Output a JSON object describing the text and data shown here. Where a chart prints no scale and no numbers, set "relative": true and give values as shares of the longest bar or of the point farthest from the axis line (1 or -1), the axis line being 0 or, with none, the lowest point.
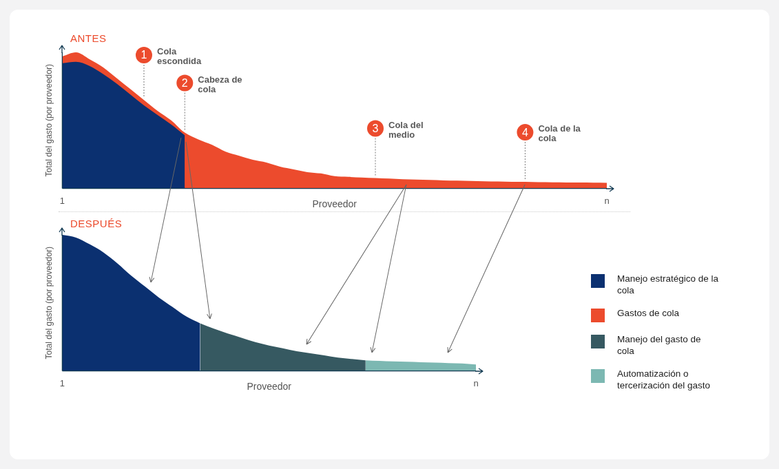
{
  "chart_data": [
    {
      "type": "area",
      "title": "ANTES",
      "xlabel": "Proveedor",
      "ylabel": "Total del gasto (por proveedor)",
      "relative": true,
      "stacked": true,
      "legend": "right",
      "categories": [
        "1",
        null,
        null,
        null,
        null,
        null,
        null,
        null,
        null,
        null,
        null,
        null,
        null,
        null,
        null,
        null,
        null,
        null,
        null,
        null,
        null,
        null,
        null,
        null,
        null,
        null,
        null,
        null,
        null,
        null,
        null,
        null,
        null,
        null,
        null,
        null,
        null,
        null,
        null,
        null,
        "n"
      ],
      "series": [
        {
          "name": "Manejo estratégico de la cola",
          "color": "#0b3070",
          "values": [
            0.92,
            0.93,
            0.9,
            0.84,
            0.77,
            0.69,
            0.61,
            0.54,
            0.47,
            0.39,
            null,
            null,
            null,
            null,
            null,
            null,
            null,
            null,
            null,
            null,
            null,
            null,
            null,
            null,
            null,
            null,
            null,
            null,
            null,
            null,
            null,
            null,
            null,
            null,
            null,
            null,
            null,
            null,
            null,
            null,
            null
          ]
        },
        {
          "name": "Gastos de cola",
          "color": "#ec4b2d",
          "values": [
            0.05,
            0.07,
            0.05,
            0.05,
            0.04,
            0.04,
            0.04,
            0.03,
            0.03,
            0.02,
            0.36,
            0.32,
            0.27,
            0.24,
            0.21,
            0.19,
            0.16,
            0.14,
            0.12,
            0.11,
            0.09,
            0.085,
            0.08,
            0.076,
            0.072,
            0.068,
            0.065,
            0.062,
            0.059,
            0.057,
            0.055,
            0.053,
            0.051,
            0.049,
            0.048,
            0.046,
            0.045,
            0.044,
            0.043,
            0.042,
            0.041
          ]
        }
      ],
      "annotations": [
        "1",
        "Cola escondida",
        "2",
        "Cabeza de cola",
        "3",
        "Cola del medio",
        "4",
        "Cola de la cola"
      ]
    },
    {
      "type": "area",
      "title": "DESPUÉS",
      "xlabel": "Proveedor",
      "ylabel": "Total del gasto (por proveedor)",
      "relative": true,
      "legend": "right",
      "categories": [
        "1",
        null,
        null,
        null,
        null,
        null,
        null,
        null,
        null,
        null,
        null,
        null,
        null,
        null,
        null,
        null,
        null,
        null,
        null,
        null,
        null,
        null,
        null,
        null,
        null,
        null,
        null,
        null,
        null,
        null,
        "n"
      ],
      "series": [
        {
          "name": "Manejo estratégico de la cola",
          "color": "#0b3070",
          "values": [
            1.0,
            0.98,
            0.93,
            0.87,
            0.79,
            0.7,
            0.62,
            0.54,
            0.47,
            0.4,
            0.35,
            null,
            null,
            null,
            null,
            null,
            null,
            null,
            null,
            null,
            null,
            null,
            null,
            null,
            null,
            null,
            null,
            null,
            null,
            null,
            null
          ]
        },
        {
          "name": "Manejo del gasto de cola",
          "color": "#365961",
          "values": [
            null,
            null,
            null,
            null,
            null,
            null,
            null,
            null,
            null,
            null,
            0.35,
            0.31,
            0.275,
            0.244,
            0.212,
            0.187,
            0.166,
            0.145,
            0.13,
            0.114,
            0.098,
            0.088,
            0.078,
            null,
            null,
            null,
            null,
            null,
            null,
            null,
            null
          ]
        },
        {
          "name": "Automatización o tercerización del gasto",
          "color": "#7cb8b2",
          "values": [
            null,
            null,
            null,
            null,
            null,
            null,
            null,
            null,
            null,
            null,
            null,
            null,
            null,
            null,
            null,
            null,
            null,
            null,
            null,
            null,
            null,
            null,
            0.078,
            0.074,
            0.07,
            0.067,
            0.064,
            0.061,
            0.058,
            0.055,
            0.047
          ]
        }
      ]
    }
  ]
}
